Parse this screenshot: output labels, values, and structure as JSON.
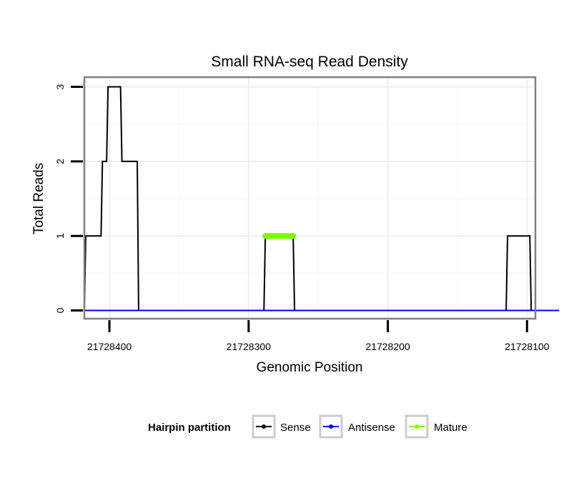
{
  "chart_data": {
    "type": "line",
    "title": "Small RNA-seq Read Density",
    "xlabel": "Genomic Position",
    "ylabel": "Total Reads",
    "x_reversed": true,
    "xlim": [
      21728418,
      21728094
    ],
    "ylim": [
      -0.11,
      3.13
    ],
    "x_ticks": [
      21728400,
      21728300,
      21728200,
      21728100
    ],
    "y_ticks": [
      0,
      1,
      2,
      3
    ],
    "grid": true,
    "legend_position": "bottom",
    "legend_title": "Hairpin partition",
    "series": [
      {
        "name": "Sense",
        "color": "#000000",
        "points": [
          [
            21728418,
            0
          ],
          [
            21728417,
            1
          ],
          [
            21728406,
            1
          ],
          [
            21728405,
            2
          ],
          [
            21728402,
            2
          ],
          [
            21728401,
            3
          ],
          [
            21728392,
            3
          ],
          [
            21728391,
            2
          ],
          [
            21728380,
            2
          ],
          [
            21728379,
            0
          ],
          [
            21728289,
            0
          ],
          [
            21728288,
            1
          ],
          [
            21728268,
            1
          ],
          [
            21728267,
            0
          ],
          [
            21728115,
            0
          ],
          [
            21728114,
            1
          ],
          [
            21728098,
            1
          ],
          [
            21728097,
            0
          ],
          [
            21728077,
            0
          ]
        ]
      },
      {
        "name": "Antisense",
        "color": "#0000ff",
        "points": [
          [
            21728418,
            0
          ],
          [
            21728077,
            0
          ]
        ]
      },
      {
        "name": "Mature",
        "color": "#7cfc00",
        "points": [
          [
            21728288,
            1
          ],
          [
            21728268,
            1
          ]
        ]
      }
    ]
  }
}
